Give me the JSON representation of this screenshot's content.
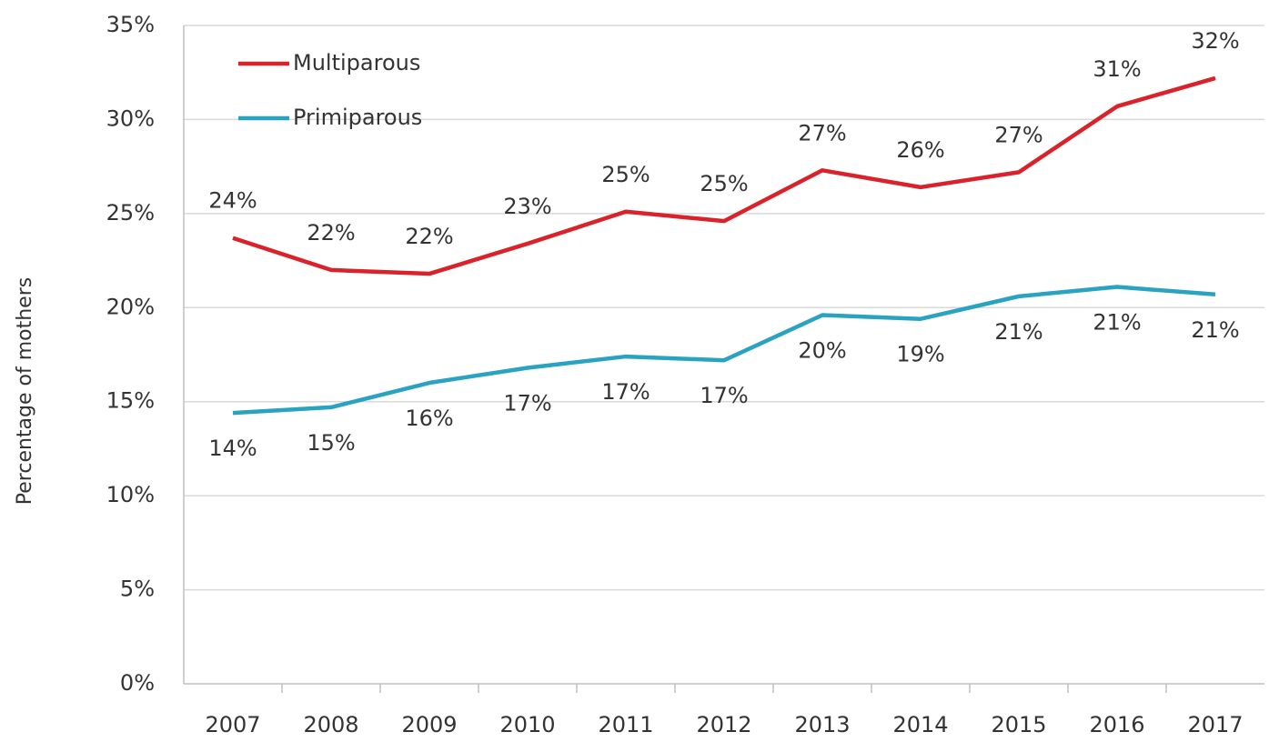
{
  "chart_data": {
    "type": "line",
    "y_label": "Percentage of mothers",
    "categories": [
      "2007",
      "2008",
      "2009",
      "2010",
      "2011",
      "2012",
      "2013",
      "2014",
      "2015",
      "2016",
      "2017"
    ],
    "series": [
      {
        "name": "Multiparous",
        "color": "#d9222a",
        "values": [
          23.7,
          22.0,
          21.8,
          23.4,
          25.1,
          24.6,
          27.3,
          26.4,
          27.2,
          30.7,
          32.2
        ],
        "value_labels": [
          "24%",
          "22%",
          "22%",
          "23%",
          "25%",
          "25%",
          "27%",
          "26%",
          "27%",
          "31%",
          "32%"
        ]
      },
      {
        "name": "Primiparous",
        "color": "#2aa3c0",
        "values": [
          14.4,
          14.7,
          16.0,
          16.8,
          17.4,
          17.2,
          19.6,
          19.4,
          20.6,
          21.1,
          20.7
        ],
        "value_labels": [
          "14%",
          "15%",
          "16%",
          "17%",
          "17%",
          "17%",
          "20%",
          "19%",
          "21%",
          "21%",
          "21%"
        ]
      }
    ],
    "ylim": [
      0,
      35
    ],
    "yticks": [
      {
        "value": 0,
        "label": "0%"
      },
      {
        "value": 5,
        "label": "5%"
      },
      {
        "value": 10,
        "label": "10%"
      },
      {
        "value": 15,
        "label": "15%"
      },
      {
        "value": 20,
        "label": "20%"
      },
      {
        "value": 25,
        "label": "25%"
      },
      {
        "value": 30,
        "label": "30%"
      },
      {
        "value": 35,
        "label": "35%"
      }
    ],
    "grid": true,
    "legend": "upper left"
  }
}
